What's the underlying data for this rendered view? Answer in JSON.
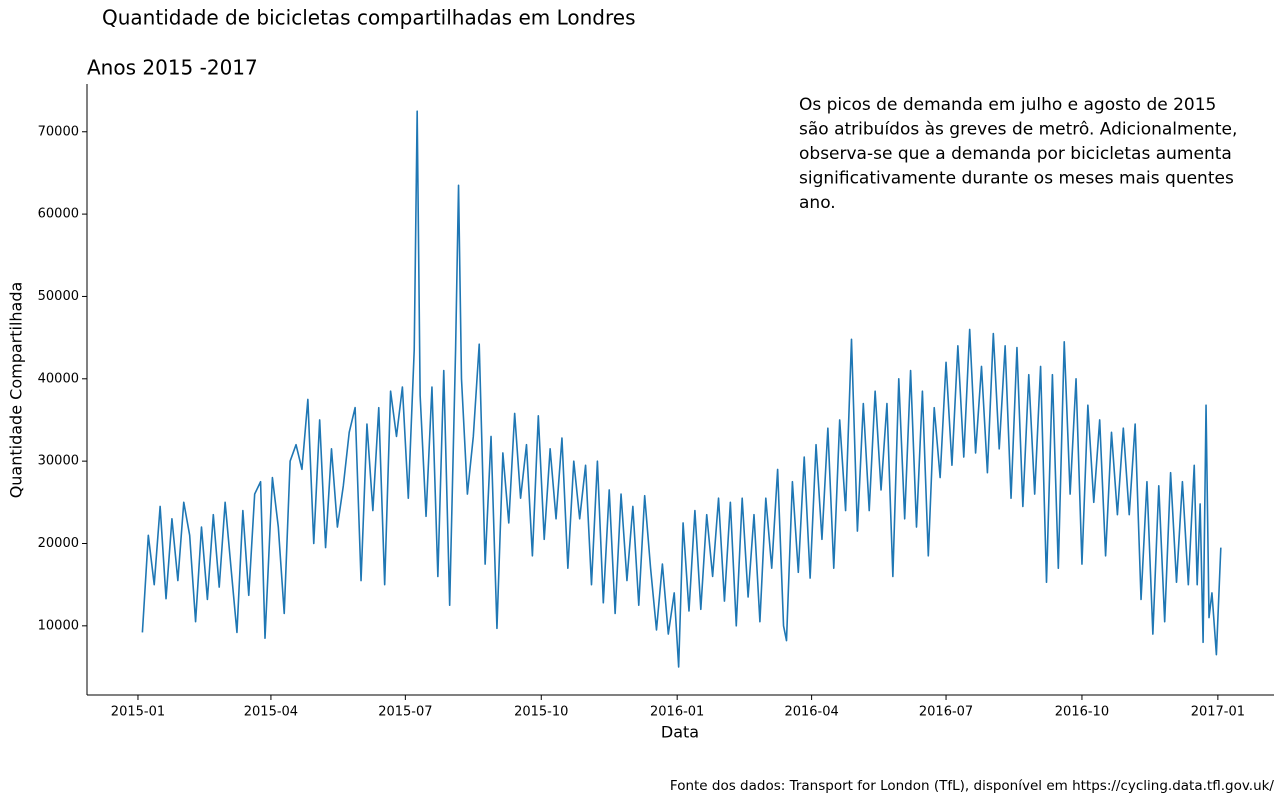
{
  "chart_data": {
    "type": "line",
    "title": "Quantidade de bicicletas compartilhadas em Londres",
    "subtitle": "Anos 2015 -2017",
    "annotation": [
      "Os picos de demanda em julho e agosto de 2015",
      "são atribuídos às greves de metrô. Adicionalmente,",
      "observa-se que a demanda por bicicletas aumenta",
      "significativamente durante os meses mais quentes",
      "ano."
    ],
    "xlabel": "Data",
    "ylabel": "Quantidade Compartilhada",
    "source": "Fonte dos dados: Transport for London (TfL), disponível em https://cycling.data.tfl.gov.uk/",
    "xlim": [
      -34.5,
      769
    ],
    "xticks": [
      {
        "value": 0,
        "label": "2015-01"
      },
      {
        "value": 90,
        "label": "2015-04"
      },
      {
        "value": 181,
        "label": "2015-07"
      },
      {
        "value": 273,
        "label": "2015-10"
      },
      {
        "value": 365,
        "label": "2016-01"
      },
      {
        "value": 456,
        "label": "2016-04"
      },
      {
        "value": 547,
        "label": "2016-07"
      },
      {
        "value": 639,
        "label": "2016-10"
      },
      {
        "value": 731,
        "label": "2017-01"
      }
    ],
    "ylim": [
      1600,
      75800
    ],
    "yticks": [
      10000,
      20000,
      30000,
      40000,
      50000,
      60000,
      70000
    ],
    "grid": false,
    "series": [
      {
        "color": "#1f77b4",
        "x": [
          3,
          7,
          11,
          15,
          19,
          23,
          27,
          31,
          35,
          39,
          43,
          47,
          51,
          55,
          59,
          63,
          67,
          71,
          75,
          79,
          83,
          86,
          91,
          95,
          99,
          103,
          107,
          111,
          115,
          119,
          123,
          127,
          131,
          135,
          139,
          143,
          147,
          151,
          155,
          159,
          163,
          167,
          171,
          175,
          179,
          183,
          187,
          189,
          191,
          195,
          199,
          203,
          207,
          211,
          215,
          217,
          219,
          223,
          227,
          231,
          235,
          239,
          243,
          247,
          251,
          255,
          259,
          263,
          267,
          271,
          275,
          279,
          283,
          287,
          291,
          295,
          299,
          303,
          307,
          311,
          315,
          319,
          323,
          327,
          331,
          335,
          339,
          343,
          347,
          351,
          355,
          359,
          363,
          366,
          369,
          373,
          377,
          381,
          385,
          389,
          393,
          397,
          401,
          405,
          409,
          413,
          417,
          421,
          425,
          429,
          433,
          437,
          439,
          443,
          447,
          451,
          455,
          459,
          463,
          467,
          471,
          475,
          479,
          483,
          487,
          491,
          495,
          499,
          503,
          507,
          511,
          515,
          519,
          523,
          527,
          531,
          535,
          539,
          543,
          547,
          551,
          555,
          559,
          563,
          567,
          571,
          575,
          579,
          583,
          587,
          591,
          595,
          599,
          603,
          607,
          611,
          615,
          619,
          623,
          627,
          631,
          635,
          639,
          643,
          647,
          651,
          655,
          659,
          663,
          667,
          671,
          675,
          679,
          683,
          687,
          691,
          695,
          699,
          703,
          707,
          711,
          715,
          717,
          719,
          721,
          723,
          725,
          727,
          730,
          733
        ],
        "values": [
          9200,
          21000,
          15000,
          24500,
          13300,
          23000,
          15500,
          25000,
          21000,
          10500,
          22000,
          13200,
          23500,
          14700,
          25000,
          17000,
          9200,
          24000,
          13700,
          26000,
          27500,
          8500,
          28000,
          22000,
          11500,
          30000,
          32000,
          29000,
          37500,
          20000,
          35000,
          19500,
          31500,
          22000,
          27000,
          33500,
          36500,
          15500,
          34500,
          24000,
          36500,
          15000,
          38500,
          33000,
          39000,
          25500,
          43500,
          72500,
          38000,
          23300,
          39000,
          16000,
          41000,
          12500,
          43500,
          63500,
          40000,
          26000,
          33000,
          44200,
          17500,
          33000,
          9700,
          31000,
          22500,
          35800,
          25500,
          32000,
          18500,
          35500,
          20500,
          31500,
          23000,
          32800,
          17000,
          30000,
          23000,
          29500,
          15000,
          30000,
          12800,
          26500,
          11500,
          26000,
          15500,
          24500,
          12500,
          25800,
          17000,
          9500,
          17500,
          9000,
          14000,
          5000,
          22500,
          11800,
          24000,
          12000,
          23500,
          16000,
          25500,
          13000,
          25000,
          10000,
          25500,
          13500,
          23500,
          10500,
          25500,
          17000,
          29000,
          10000,
          8200,
          27500,
          16500,
          30500,
          15800,
          32000,
          20500,
          34000,
          17000,
          35000,
          24000,
          44800,
          21500,
          37000,
          24000,
          38500,
          26500,
          37000,
          16000,
          40000,
          23000,
          41000,
          22000,
          38500,
          18500,
          36500,
          28000,
          42000,
          29500,
          44000,
          30500,
          46000,
          31000,
          41500,
          28600,
          45500,
          31500,
          44000,
          25500,
          43800,
          24500,
          40500,
          26000,
          41500,
          15300,
          40500,
          17000,
          44500,
          26000,
          40000,
          17500,
          36800,
          25000,
          35000,
          18500,
          33500,
          23500,
          34000,
          23500,
          34500,
          13200,
          27500,
          9000,
          27000,
          10500,
          28600,
          15300,
          27500,
          15000,
          29500,
          15000,
          24800,
          8000,
          36800,
          11000,
          14000,
          6500,
          19500
        ]
      }
    ]
  }
}
